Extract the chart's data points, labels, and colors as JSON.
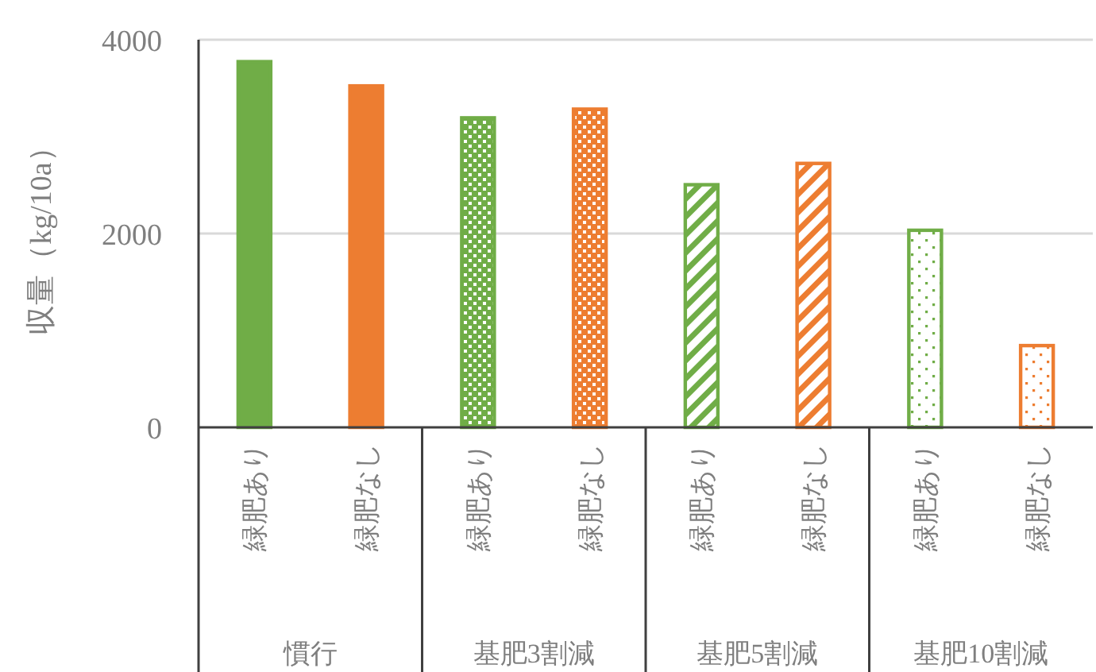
{
  "chart_data": {
    "type": "bar",
    "ylabel": "収量（kg/10a）",
    "categories": [
      "緑肥あり",
      "緑肥なし",
      "緑肥あり",
      "緑肥なし",
      "緑肥あり",
      "緑肥なし",
      "緑肥あり",
      "緑肥なし"
    ],
    "values": [
      3790,
      3540,
      3210,
      3300,
      2520,
      2740,
      2050,
      860
    ],
    "colors": [
      "#70ad47",
      "#ed7d31",
      "#70ad47",
      "#ed7d31",
      "#70ad47",
      "#ed7d31",
      "#70ad47",
      "#ed7d31"
    ],
    "annotations": [
      "慣行",
      "基肥3割減",
      "基肥5割減",
      "基肥10割減"
    ],
    "ylim": [
      0,
      4000
    ],
    "yticks": [
      0,
      2000,
      4000
    ],
    "grid": "y"
  }
}
